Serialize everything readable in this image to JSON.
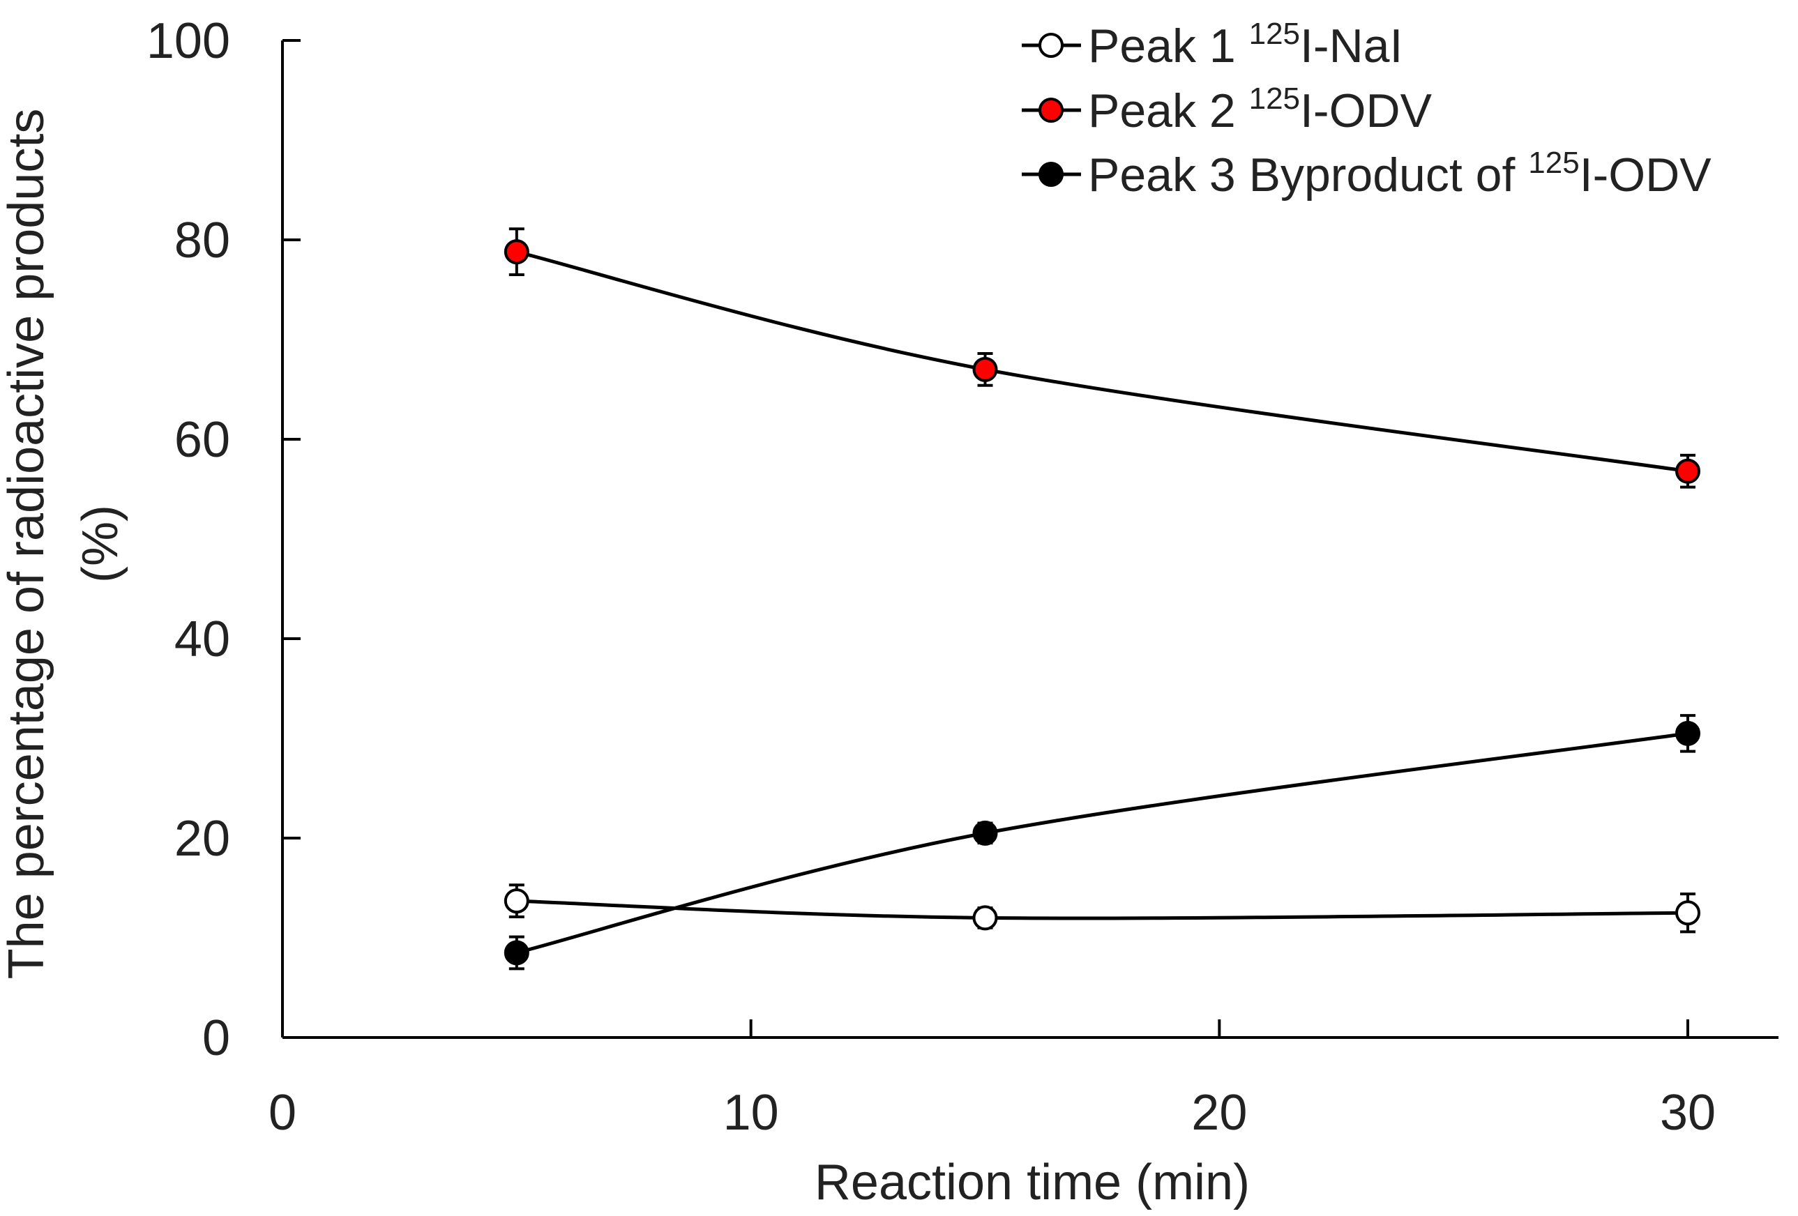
{
  "chart_data": {
    "type": "line",
    "xlabel": "Reaction time (min)",
    "ylabel_line1": "The percentage of radioactive products",
    "ylabel_line2": "(%)",
    "xlim": [
      0,
      32
    ],
    "ylim": [
      0,
      100
    ],
    "x_ticks": [
      0,
      10,
      20,
      30
    ],
    "y_ticks": [
      0,
      20,
      40,
      60,
      80,
      100
    ],
    "x_tick_labels": [
      "0",
      "10",
      "20",
      "30"
    ],
    "y_tick_labels": [
      "0",
      "20",
      "40",
      "60",
      "80",
      "100"
    ],
    "grid": false,
    "legend_position": "top-right",
    "series": [
      {
        "name": "Peak 1 125I-NaI",
        "legend_prefix": "Peak 1 ",
        "legend_sup": "125",
        "legend_suffix": "I-NaI",
        "marker_fill": "#ffffff",
        "x": [
          5,
          15,
          30
        ],
        "y": [
          13.7,
          12.0,
          12.5
        ],
        "err": [
          1.6,
          1.0,
          1.9
        ]
      },
      {
        "name": "Peak 2 125I-ODV",
        "legend_prefix": "Peak 2 ",
        "legend_sup": "125",
        "legend_suffix": "I-ODV",
        "marker_fill": "#ff0000",
        "x": [
          5,
          15,
          30
        ],
        "y": [
          78.8,
          67.0,
          56.8
        ],
        "err": [
          2.3,
          1.6,
          1.6
        ]
      },
      {
        "name": "Peak 3 Byproduct of 125I-ODV",
        "legend_prefix": "Peak 3 Byproduct of ",
        "legend_sup": "125",
        "legend_suffix": "I-ODV",
        "marker_fill": "#000000",
        "x": [
          5,
          15,
          30
        ],
        "y": [
          8.5,
          20.5,
          30.5
        ],
        "err": [
          1.6,
          1.0,
          1.8
        ]
      }
    ]
  }
}
